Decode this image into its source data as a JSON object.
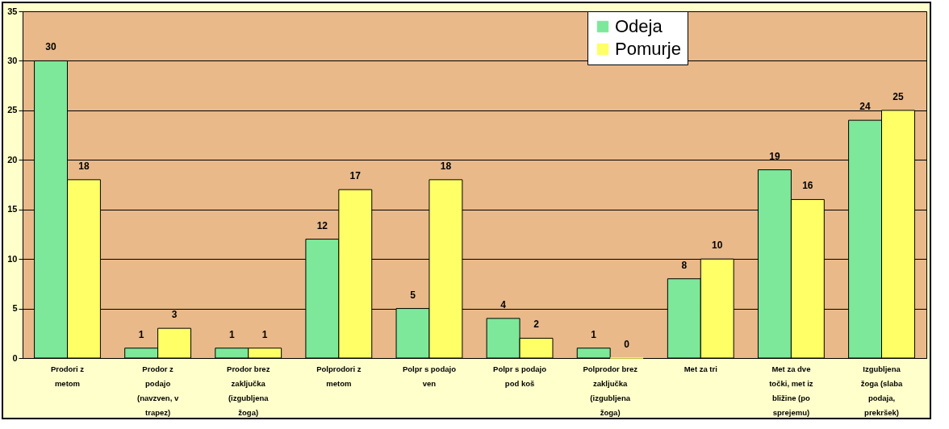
{
  "chart_data": {
    "type": "bar",
    "categories": [
      "Prodori z metom",
      "Prodor z podajo (navzven, v trapez)",
      "Prodor brez zaključka (izgubljena žoga)",
      "Polprodori z metom",
      "Polpr s podajo ven",
      "Polpr s podajo pod koš",
      "Polprodor brez zaključka (izgubljena žoga)",
      "Met za tri",
      "Met za dve točki, met iz bližine (po sprejemu)",
      "Izgubljena žoga (slaba podaja, prekršek)"
    ],
    "series": [
      {
        "name": "Odeja",
        "color": "#7de89a",
        "values": [
          30,
          1,
          1,
          12,
          5,
          4,
          1,
          8,
          19,
          24
        ]
      },
      {
        "name": "Pomurje",
        "color": "#ffff66",
        "values": [
          18,
          3,
          1,
          17,
          18,
          2,
          0,
          10,
          16,
          25
        ]
      }
    ],
    "ylim": [
      0,
      35
    ],
    "yticks": [
      0,
      5,
      10,
      15,
      20,
      25,
      30,
      35
    ],
    "grid": "y",
    "legend": "top right",
    "data_labels": true
  }
}
